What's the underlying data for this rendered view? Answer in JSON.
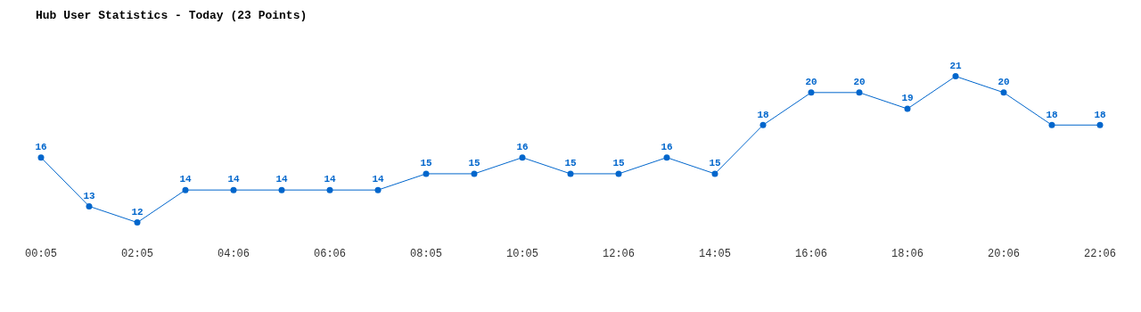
{
  "chart_data": {
    "type": "line",
    "title": "Hub User Statistics - Today (23 Points)",
    "categories": [
      "00:05",
      null,
      "02:05",
      null,
      "04:06",
      null,
      "06:06",
      null,
      "08:05",
      null,
      "10:05",
      null,
      "12:06",
      null,
      "14:05",
      null,
      "16:06",
      null,
      "18:06",
      null,
      "20:06",
      null,
      "22:06"
    ],
    "series": [
      {
        "color": "#0066cc",
        "values": [
          16,
          13,
          12,
          14,
          14,
          14,
          14,
          14,
          15,
          15,
          16,
          15,
          15,
          16,
          15,
          18,
          20,
          20,
          19,
          21,
          20,
          18,
          18
        ]
      }
    ],
    "data_labels": true,
    "marker": "circle",
    "line_style": "solid",
    "grid": false,
    "legend": false,
    "tick_labels": "x"
  }
}
